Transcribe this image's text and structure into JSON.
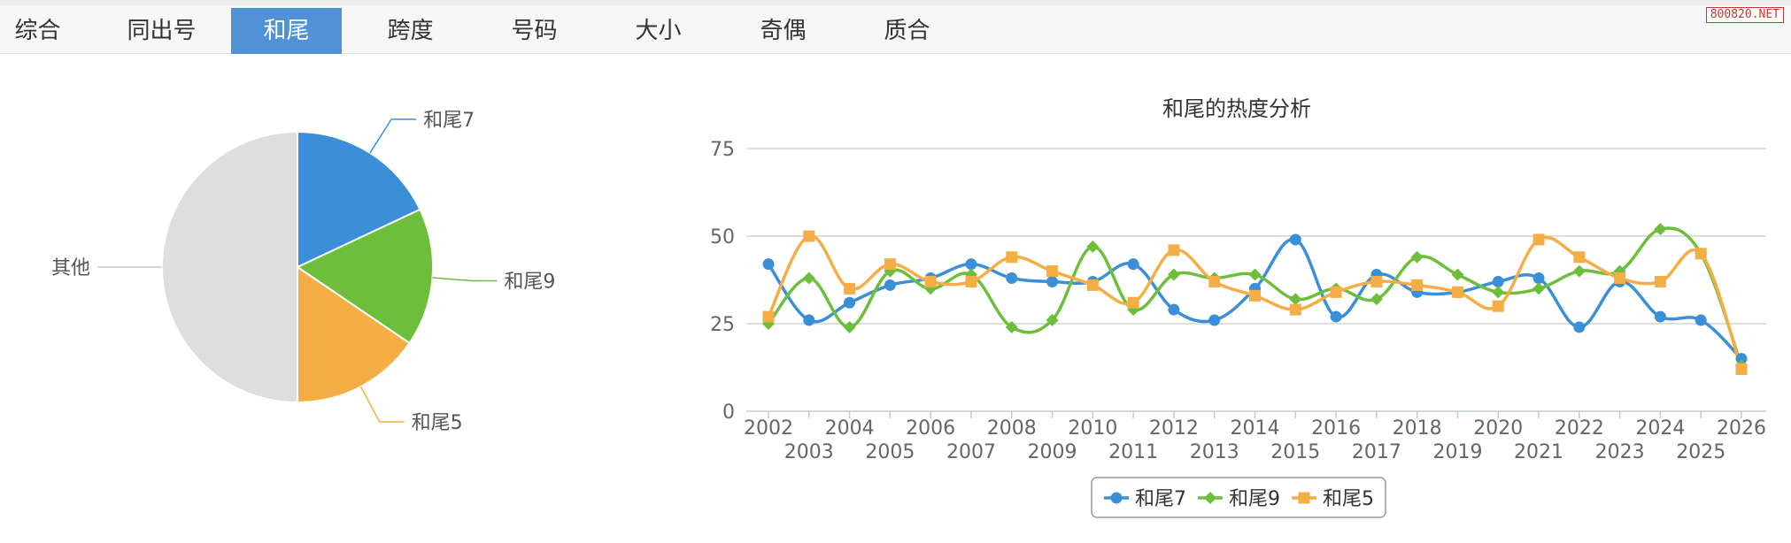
{
  "tabs": [
    {
      "label": "综合",
      "active": false
    },
    {
      "label": "同出号",
      "active": false
    },
    {
      "label": "和尾",
      "active": true
    },
    {
      "label": "跨度",
      "active": false
    },
    {
      "label": "号码",
      "active": false
    },
    {
      "label": "大小",
      "active": false
    },
    {
      "label": "奇偶",
      "active": false
    },
    {
      "label": "质合",
      "active": false
    }
  ],
  "watermark": "800820.NET",
  "colors": {
    "series1": "#3a8fd8",
    "series2": "#6dbf3b",
    "series3": "#f5ae45",
    "other": "#dedede",
    "tab_active": "#4f93d6"
  },
  "chart_data": [
    {
      "type": "pie",
      "slices": [
        {
          "label": "和尾7",
          "value": 18,
          "color": "#3a8fd8"
        },
        {
          "label": "和尾9",
          "value": 16.5,
          "color": "#6dbf3b"
        },
        {
          "label": "和尾5",
          "value": 15.5,
          "color": "#f5ae45"
        },
        {
          "label": "其他",
          "value": 50,
          "color": "#dedede"
        }
      ]
    },
    {
      "type": "line",
      "title": "和尾的热度分析",
      "x": [
        "2002",
        "2003",
        "2004",
        "2005",
        "2006",
        "2007",
        "2008",
        "2009",
        "2010",
        "2011",
        "2012",
        "2013",
        "2014",
        "2015",
        "2016",
        "2017",
        "2018",
        "2019",
        "2020",
        "2021",
        "2022",
        "2023",
        "2024",
        "2025",
        "2026"
      ],
      "ylim": [
        0,
        75
      ],
      "yticks": [
        0,
        25,
        50,
        75
      ],
      "grid": true,
      "legend_position": "bottom-center",
      "series": [
        {
          "name": "和尾7",
          "color": "#3a8fd8",
          "marker": "circle",
          "values": [
            42,
            26,
            31,
            36,
            38,
            42,
            38,
            37,
            37,
            42,
            29,
            26,
            35,
            49,
            27,
            39,
            34,
            34,
            37,
            38,
            24,
            37,
            27,
            26,
            15
          ]
        },
        {
          "name": "和尾9",
          "color": "#6dbf3b",
          "marker": "diamond",
          "values": [
            25,
            38,
            24,
            40,
            35,
            39,
            24,
            26,
            47,
            29,
            39,
            38,
            39,
            32,
            35,
            32,
            44,
            39,
            34,
            35,
            40,
            40,
            52,
            45,
            13
          ]
        },
        {
          "name": "和尾5",
          "color": "#f5ae45",
          "marker": "square",
          "values": [
            27,
            50,
            35,
            42,
            37,
            37,
            44,
            40,
            36,
            31,
            46,
            37,
            33,
            29,
            34,
            37,
            36,
            34,
            30,
            49,
            44,
            38,
            37,
            45,
            12
          ]
        }
      ]
    }
  ]
}
